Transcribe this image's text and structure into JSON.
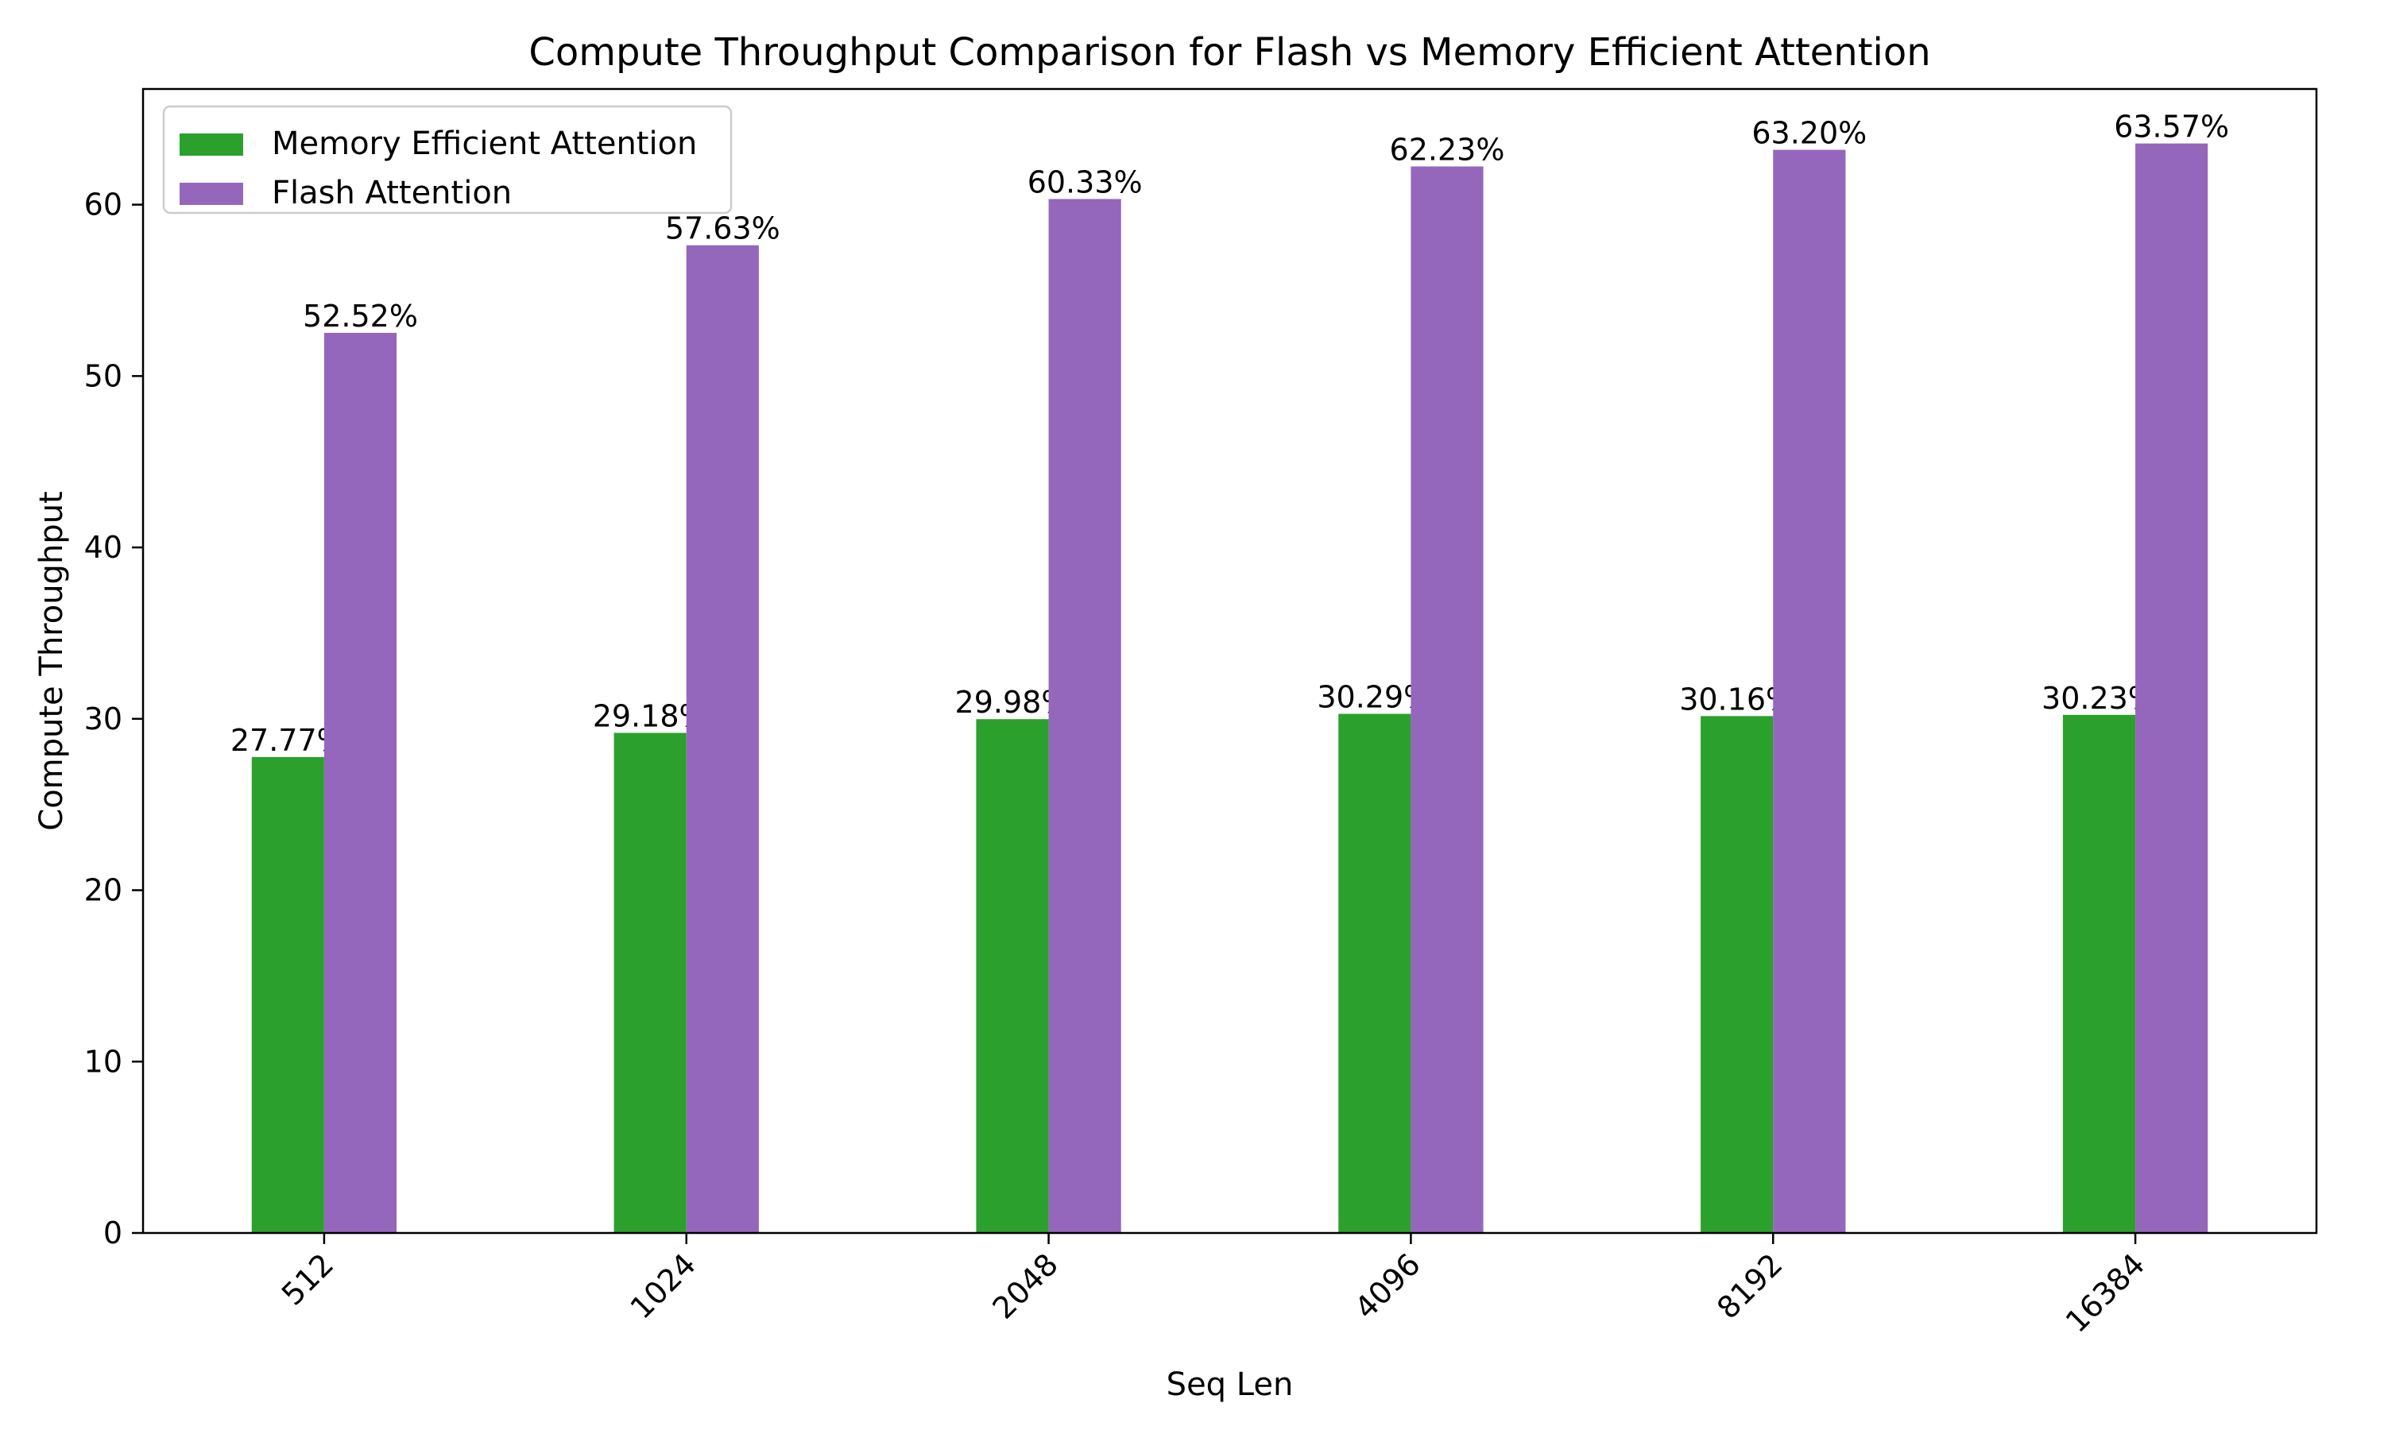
{
  "chart_data": {
    "type": "bar",
    "title": "Compute Throughput Comparison for Flash vs Memory Efficient Attention",
    "xlabel": "Seq Len",
    "ylabel": "Compute Throughput",
    "categories": [
      "512",
      "1024",
      "2048",
      "4096",
      "8192",
      "16384"
    ],
    "series": [
      {
        "name": "Memory Efficient Attention",
        "color": "#2ca02c",
        "values": [
          27.77,
          29.18,
          29.98,
          30.29,
          30.16,
          30.23
        ],
        "labels": [
          "27.77%",
          "29.18%",
          "29.98%",
          "30.29%",
          "30.16%",
          "30.23%"
        ]
      },
      {
        "name": "Flash Attention",
        "color": "#9467bd",
        "values": [
          52.52,
          57.63,
          60.33,
          62.23,
          63.2,
          63.57
        ],
        "labels": [
          "52.52%",
          "57.63%",
          "60.33%",
          "62.23%",
          "63.20%",
          "63.57%"
        ]
      }
    ],
    "ylim": [
      0,
      66.75
    ],
    "yticks": [
      0,
      10,
      20,
      30,
      40,
      50,
      60
    ],
    "legend_position": "upper-left",
    "grid": false,
    "xtick_rotation": 45
  }
}
